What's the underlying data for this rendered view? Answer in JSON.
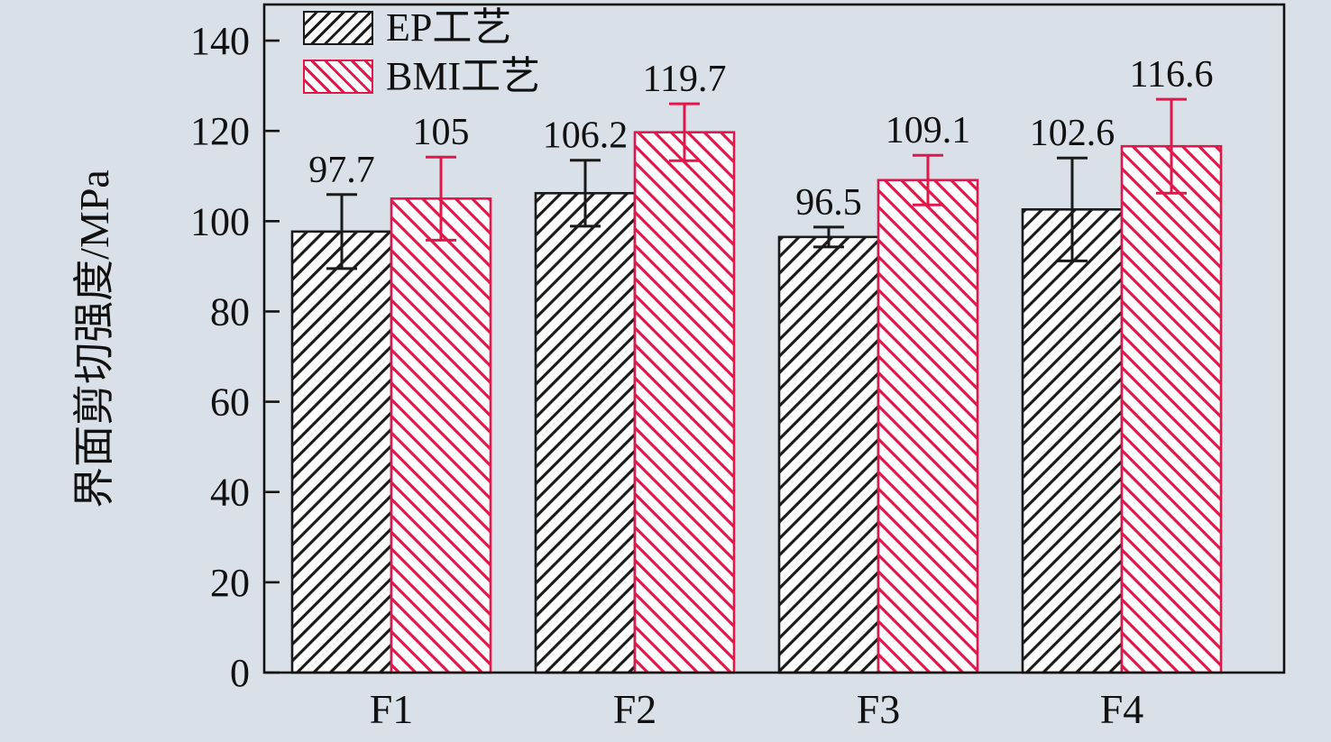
{
  "chart_data": {
    "type": "bar",
    "title": "",
    "ylabel": "界面剪切强度/MPa",
    "xlabel": "",
    "categories": [
      "F1",
      "F2",
      "F3",
      "F4"
    ],
    "series": [
      {
        "key": "ep",
        "name": "EP工艺",
        "hatch": "/",
        "color": "#1a1a1a",
        "values": [
          97.7,
          106.2,
          96.5,
          102.6
        ],
        "value_labels": [
          "97.7",
          "106.2",
          "96.5",
          "102.6"
        ],
        "errors": [
          8.2,
          7.3,
          2.2,
          11.4
        ]
      },
      {
        "key": "bmi",
        "name": "BMI工艺",
        "hatch": "\\",
        "color": "#e0174a",
        "values": [
          105,
          119.7,
          109.1,
          116.6
        ],
        "value_labels": [
          "105",
          "119.7",
          "109.1",
          "116.6"
        ],
        "errors": [
          9.2,
          6.3,
          5.5,
          10.4
        ]
      }
    ],
    "yticks": [
      0,
      20,
      40,
      60,
      80,
      100,
      120,
      140
    ],
    "ylim": [
      0,
      148
    ],
    "legend_position": "top-left",
    "grid": false,
    "background": "#d9e0e7",
    "axis_color": "#111111"
  }
}
